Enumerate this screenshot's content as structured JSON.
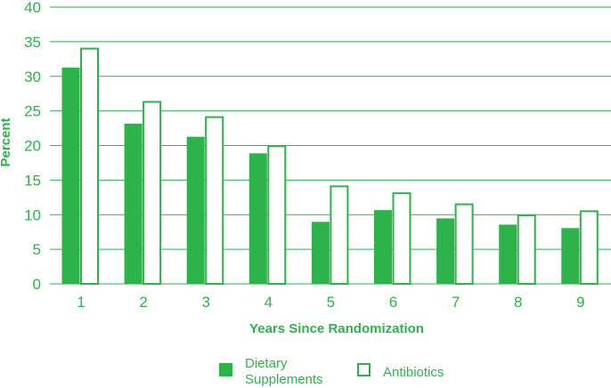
{
  "chart_data": {
    "type": "bar",
    "xlabel": "Years Since Randomization",
    "ylabel": "Percent",
    "categories": [
      "1",
      "2",
      "3",
      "4",
      "5",
      "6",
      "7",
      "8",
      "9"
    ],
    "ylim": [
      0,
      40
    ],
    "yticks": [
      0,
      5,
      10,
      15,
      20,
      25,
      30,
      35,
      40
    ],
    "grid": true,
    "legend_position": "bottom",
    "series": [
      {
        "name": "Dietary Supplements",
        "legend_lines": [
          "Dietary",
          "Supplements"
        ],
        "style": "filled",
        "values": [
          31.2,
          23.1,
          21.2,
          18.8,
          8.9,
          10.6,
          9.4,
          8.5,
          8.0
        ]
      },
      {
        "name": "Antibiotics",
        "legend_lines": [
          "Antibiotics"
        ],
        "style": "outline",
        "values": [
          34.0,
          26.3,
          24.1,
          19.9,
          14.1,
          13.1,
          11.5,
          9.9,
          10.5
        ]
      }
    ]
  },
  "colors": {
    "accent": "#2db34a",
    "grid": "#2db34a",
    "background": "#ffffff"
  }
}
